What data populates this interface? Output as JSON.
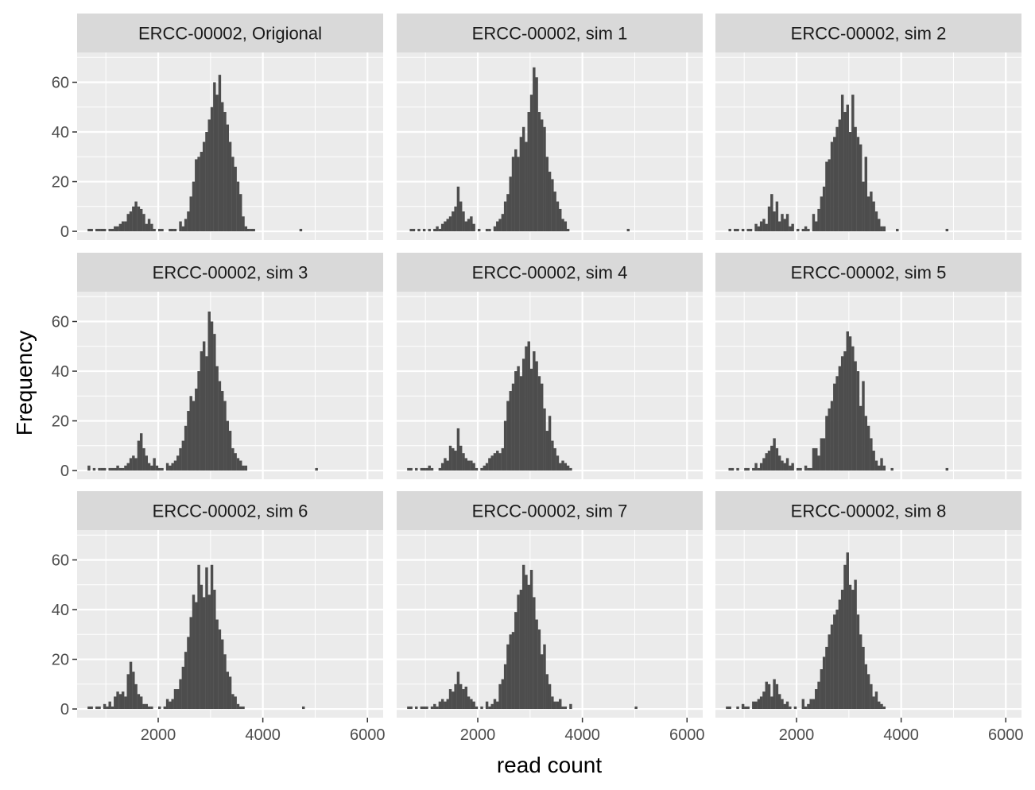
{
  "chart_data": {
    "type": "bar",
    "chart_kind": "faceted histogram",
    "xlabel": "read count",
    "ylabel": "Frequency",
    "xlim": [
      450,
      6300
    ],
    "ylim": [
      -3.5,
      72
    ],
    "x_ticks": [
      2000,
      4000,
      6000
    ],
    "y_ticks": [
      0,
      20,
      40,
      60
    ],
    "grid": true,
    "bin_width": 50,
    "bin_start": 650,
    "bar_color": "#4d4d4d",
    "panel_background": "#ebebeb",
    "strip_background": "#d9d9d9",
    "facets": [
      {
        "title": "ERCC-00002, Origional",
        "counts": [
          1,
          1,
          0,
          1,
          1,
          1,
          1,
          0,
          1,
          1,
          2,
          2,
          3,
          4,
          4,
          7,
          8,
          10,
          12,
          10,
          9,
          7,
          3,
          5,
          3,
          1,
          0,
          1,
          1,
          0,
          0,
          1,
          1,
          1,
          0,
          4,
          2,
          5,
          8,
          14,
          20,
          29,
          30,
          32,
          36,
          40,
          45,
          50,
          60,
          55,
          63,
          52,
          48,
          43,
          36,
          30,
          26,
          20,
          15,
          6,
          2,
          1,
          1,
          1,
          0,
          0,
          0,
          0,
          0,
          0,
          0,
          0,
          0,
          0,
          0,
          0,
          0,
          0,
          0,
          0,
          0,
          1,
          0,
          0,
          0,
          0,
          0,
          0,
          0
        ]
      },
      {
        "title": "ERCC-00002, sim 1",
        "counts": [
          0,
          1,
          1,
          0,
          1,
          0,
          1,
          0,
          1,
          0,
          1,
          2,
          1,
          3,
          4,
          5,
          6,
          8,
          10,
          18,
          12,
          8,
          4,
          5,
          6,
          3,
          0,
          1,
          0,
          0,
          1,
          1,
          0,
          2,
          4,
          5,
          7,
          12,
          15,
          22,
          30,
          33,
          30,
          38,
          42,
          36,
          48,
          55,
          66,
          62,
          48,
          45,
          42,
          30,
          24,
          21,
          16,
          12,
          9,
          5,
          4,
          1,
          0,
          0,
          0,
          0,
          0,
          0,
          0,
          0,
          0,
          0,
          0,
          0,
          0,
          0,
          0,
          0,
          0,
          0,
          0,
          0,
          0,
          0,
          1,
          0,
          0,
          0,
          0
        ]
      },
      {
        "title": "ERCC-00002, sim 2",
        "counts": [
          0,
          1,
          0,
          1,
          1,
          0,
          1,
          0,
          1,
          1,
          0,
          3,
          2,
          4,
          5,
          3,
          10,
          15,
          8,
          12,
          4,
          7,
          5,
          7,
          2,
          3,
          0,
          1,
          0,
          1,
          2,
          1,
          0,
          7,
          4,
          9,
          14,
          18,
          28,
          29,
          36,
          38,
          42,
          45,
          55,
          48,
          51,
          40,
          55,
          42,
          38,
          35,
          20,
          30,
          14,
          16,
          12,
          8,
          5,
          2,
          2,
          0,
          0,
          0,
          0,
          1,
          0,
          0,
          0,
          0,
          0,
          0,
          0,
          0,
          0,
          0,
          0,
          0,
          0,
          0,
          0,
          0,
          0,
          0,
          1,
          0,
          0,
          0,
          0
        ]
      },
      {
        "title": "ERCC-00002, sim 3",
        "counts": [
          2,
          0,
          1,
          0,
          1,
          1,
          1,
          0,
          1,
          1,
          1,
          2,
          1,
          1,
          2,
          3,
          5,
          6,
          5,
          12,
          15,
          9,
          6,
          3,
          2,
          5,
          2,
          1,
          1,
          0,
          3,
          2,
          3,
          4,
          6,
          9,
          12,
          18,
          24,
          30,
          28,
          33,
          40,
          48,
          52,
          46,
          64,
          60,
          55,
          42,
          36,
          32,
          28,
          20,
          16,
          9,
          7,
          5,
          4,
          2,
          2,
          0,
          0,
          0,
          0,
          0,
          0,
          0,
          0,
          0,
          0,
          0,
          0,
          0,
          0,
          0,
          0,
          0,
          0,
          0,
          0,
          0,
          0,
          0,
          0,
          0,
          0,
          1,
          0
        ]
      },
      {
        "title": "ERCC-00002, sim 4",
        "counts": [
          1,
          1,
          0,
          1,
          0,
          1,
          1,
          1,
          2,
          1,
          0,
          0,
          1,
          3,
          5,
          4,
          10,
          9,
          8,
          17,
          10,
          7,
          5,
          4,
          4,
          3,
          1,
          0,
          1,
          2,
          3,
          5,
          6,
          7,
          8,
          7,
          9,
          20,
          28,
          32,
          35,
          40,
          42,
          38,
          45,
          50,
          52,
          41,
          48,
          44,
          38,
          35,
          25,
          16,
          22,
          12,
          9,
          6,
          3,
          4,
          3,
          2,
          1,
          0,
          0,
          0,
          0,
          0,
          0,
          0,
          0,
          0,
          0,
          0,
          0,
          0,
          0,
          0,
          0,
          0,
          0,
          0,
          0,
          0,
          0,
          0,
          0,
          0,
          0
        ]
      },
      {
        "title": "ERCC-00002, sim 5",
        "counts": [
          0,
          1,
          1,
          0,
          1,
          0,
          0,
          1,
          1,
          0,
          1,
          3,
          1,
          3,
          5,
          7,
          8,
          10,
          13,
          9,
          6,
          4,
          3,
          5,
          2,
          3,
          0,
          1,
          1,
          0,
          2,
          1,
          1,
          9,
          9,
          6,
          13,
          13,
          22,
          25,
          28,
          35,
          38,
          42,
          46,
          48,
          56,
          54,
          50,
          44,
          40,
          26,
          36,
          22,
          18,
          13,
          8,
          4,
          2,
          5,
          2,
          0,
          0,
          1,
          0,
          0,
          0,
          0,
          0,
          0,
          0,
          0,
          0,
          0,
          0,
          0,
          0,
          0,
          0,
          0,
          0,
          0,
          0,
          0,
          1,
          0,
          0,
          0,
          0
        ]
      },
      {
        "title": "ERCC-00002, sim 6",
        "counts": [
          1,
          1,
          0,
          1,
          1,
          0,
          2,
          1,
          3,
          1,
          5,
          7,
          6,
          7,
          5,
          14,
          19,
          15,
          10,
          6,
          5,
          2,
          2,
          1,
          1,
          0,
          0,
          1,
          0,
          1,
          4,
          3,
          4,
          8,
          8,
          12,
          17,
          23,
          29,
          37,
          46,
          43,
          58,
          50,
          45,
          57,
          46,
          58,
          48,
          36,
          32,
          28,
          22,
          15,
          13,
          6,
          5,
          2,
          1,
          1,
          0,
          0,
          0,
          0,
          0,
          0,
          0,
          0,
          0,
          0,
          0,
          0,
          0,
          0,
          0,
          0,
          0,
          0,
          0,
          0,
          0,
          0,
          1,
          0,
          0,
          0,
          0,
          0,
          0
        ]
      },
      {
        "title": "ERCC-00002, sim 7",
        "counts": [
          1,
          1,
          0,
          1,
          0,
          1,
          1,
          1,
          0,
          1,
          2,
          1,
          3,
          4,
          3,
          4,
          8,
          7,
          10,
          15,
          10,
          8,
          9,
          5,
          4,
          3,
          1,
          0,
          1,
          0,
          3,
          1,
          2,
          4,
          3,
          10,
          12,
          18,
          26,
          30,
          31,
          39,
          46,
          48,
          58,
          54,
          50,
          56,
          45,
          36,
          32,
          22,
          26,
          14,
          10,
          5,
          3,
          3,
          4,
          1,
          1,
          0,
          2,
          0,
          0,
          0,
          0,
          0,
          0,
          0,
          0,
          0,
          0,
          0,
          0,
          0,
          0,
          0,
          0,
          0,
          0,
          0,
          0,
          0,
          0,
          0,
          0,
          1,
          0
        ]
      },
      {
        "title": "ERCC-00002, sim 8",
        "counts": [
          1,
          1,
          0,
          0,
          1,
          0,
          2,
          1,
          1,
          0,
          3,
          3,
          4,
          5,
          7,
          11,
          10,
          5,
          12,
          10,
          6,
          4,
          2,
          3,
          1,
          0,
          1,
          0,
          0,
          4,
          1,
          2,
          4,
          4,
          8,
          11,
          16,
          21,
          25,
          30,
          34,
          38,
          40,
          44,
          48,
          58,
          63,
          50,
          48,
          52,
          38,
          30,
          25,
          18,
          14,
          10,
          5,
          7,
          3,
          2,
          1,
          0,
          0,
          0,
          0,
          0,
          0,
          0,
          0,
          0,
          0,
          0,
          0,
          0,
          0,
          0,
          0,
          0,
          0,
          0,
          0,
          0,
          0,
          0,
          0,
          0,
          0,
          0,
          0
        ]
      }
    ]
  }
}
